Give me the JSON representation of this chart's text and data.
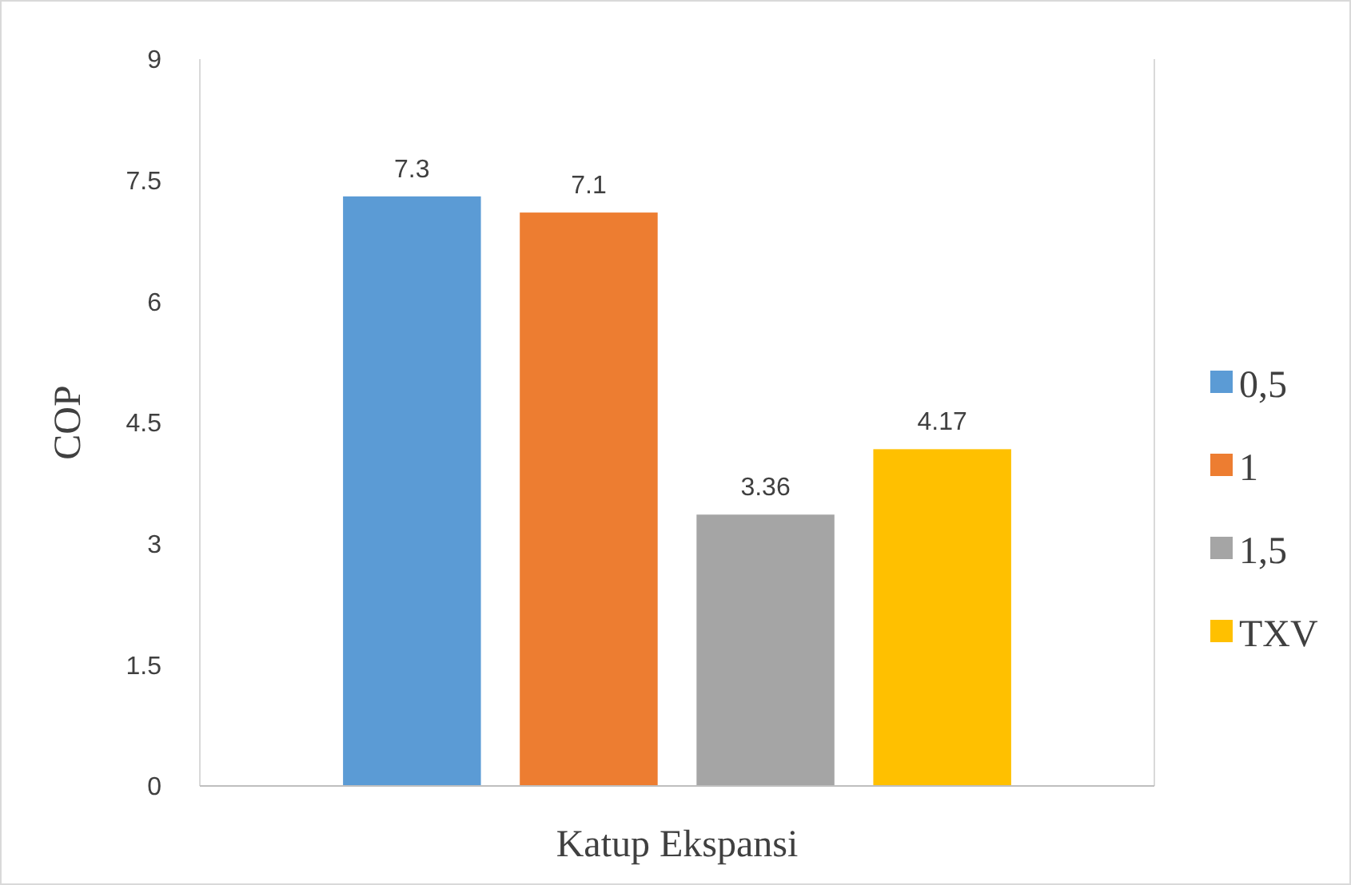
{
  "chart_data": {
    "type": "bar",
    "xlabel": "Katup Ekspansi",
    "ylabel": "COP",
    "categories": [
      null
    ],
    "series": [
      {
        "name": "0,5",
        "color": "#5b9bd5",
        "values": [
          7.3
        ]
      },
      {
        "name": "1",
        "color": "#ed7d31",
        "values": [
          7.1
        ]
      },
      {
        "name": "1,5",
        "color": "#a5a5a5",
        "values": [
          3.36
        ]
      },
      {
        "name": "TXV",
        "color": "#ffc000",
        "values": [
          4.17
        ]
      }
    ],
    "ylim": [
      0,
      9
    ],
    "yticks": [
      0,
      1.5,
      3,
      4.5,
      6,
      7.5,
      9
    ],
    "grid": false,
    "legend": "right",
    "data_labels": true
  }
}
